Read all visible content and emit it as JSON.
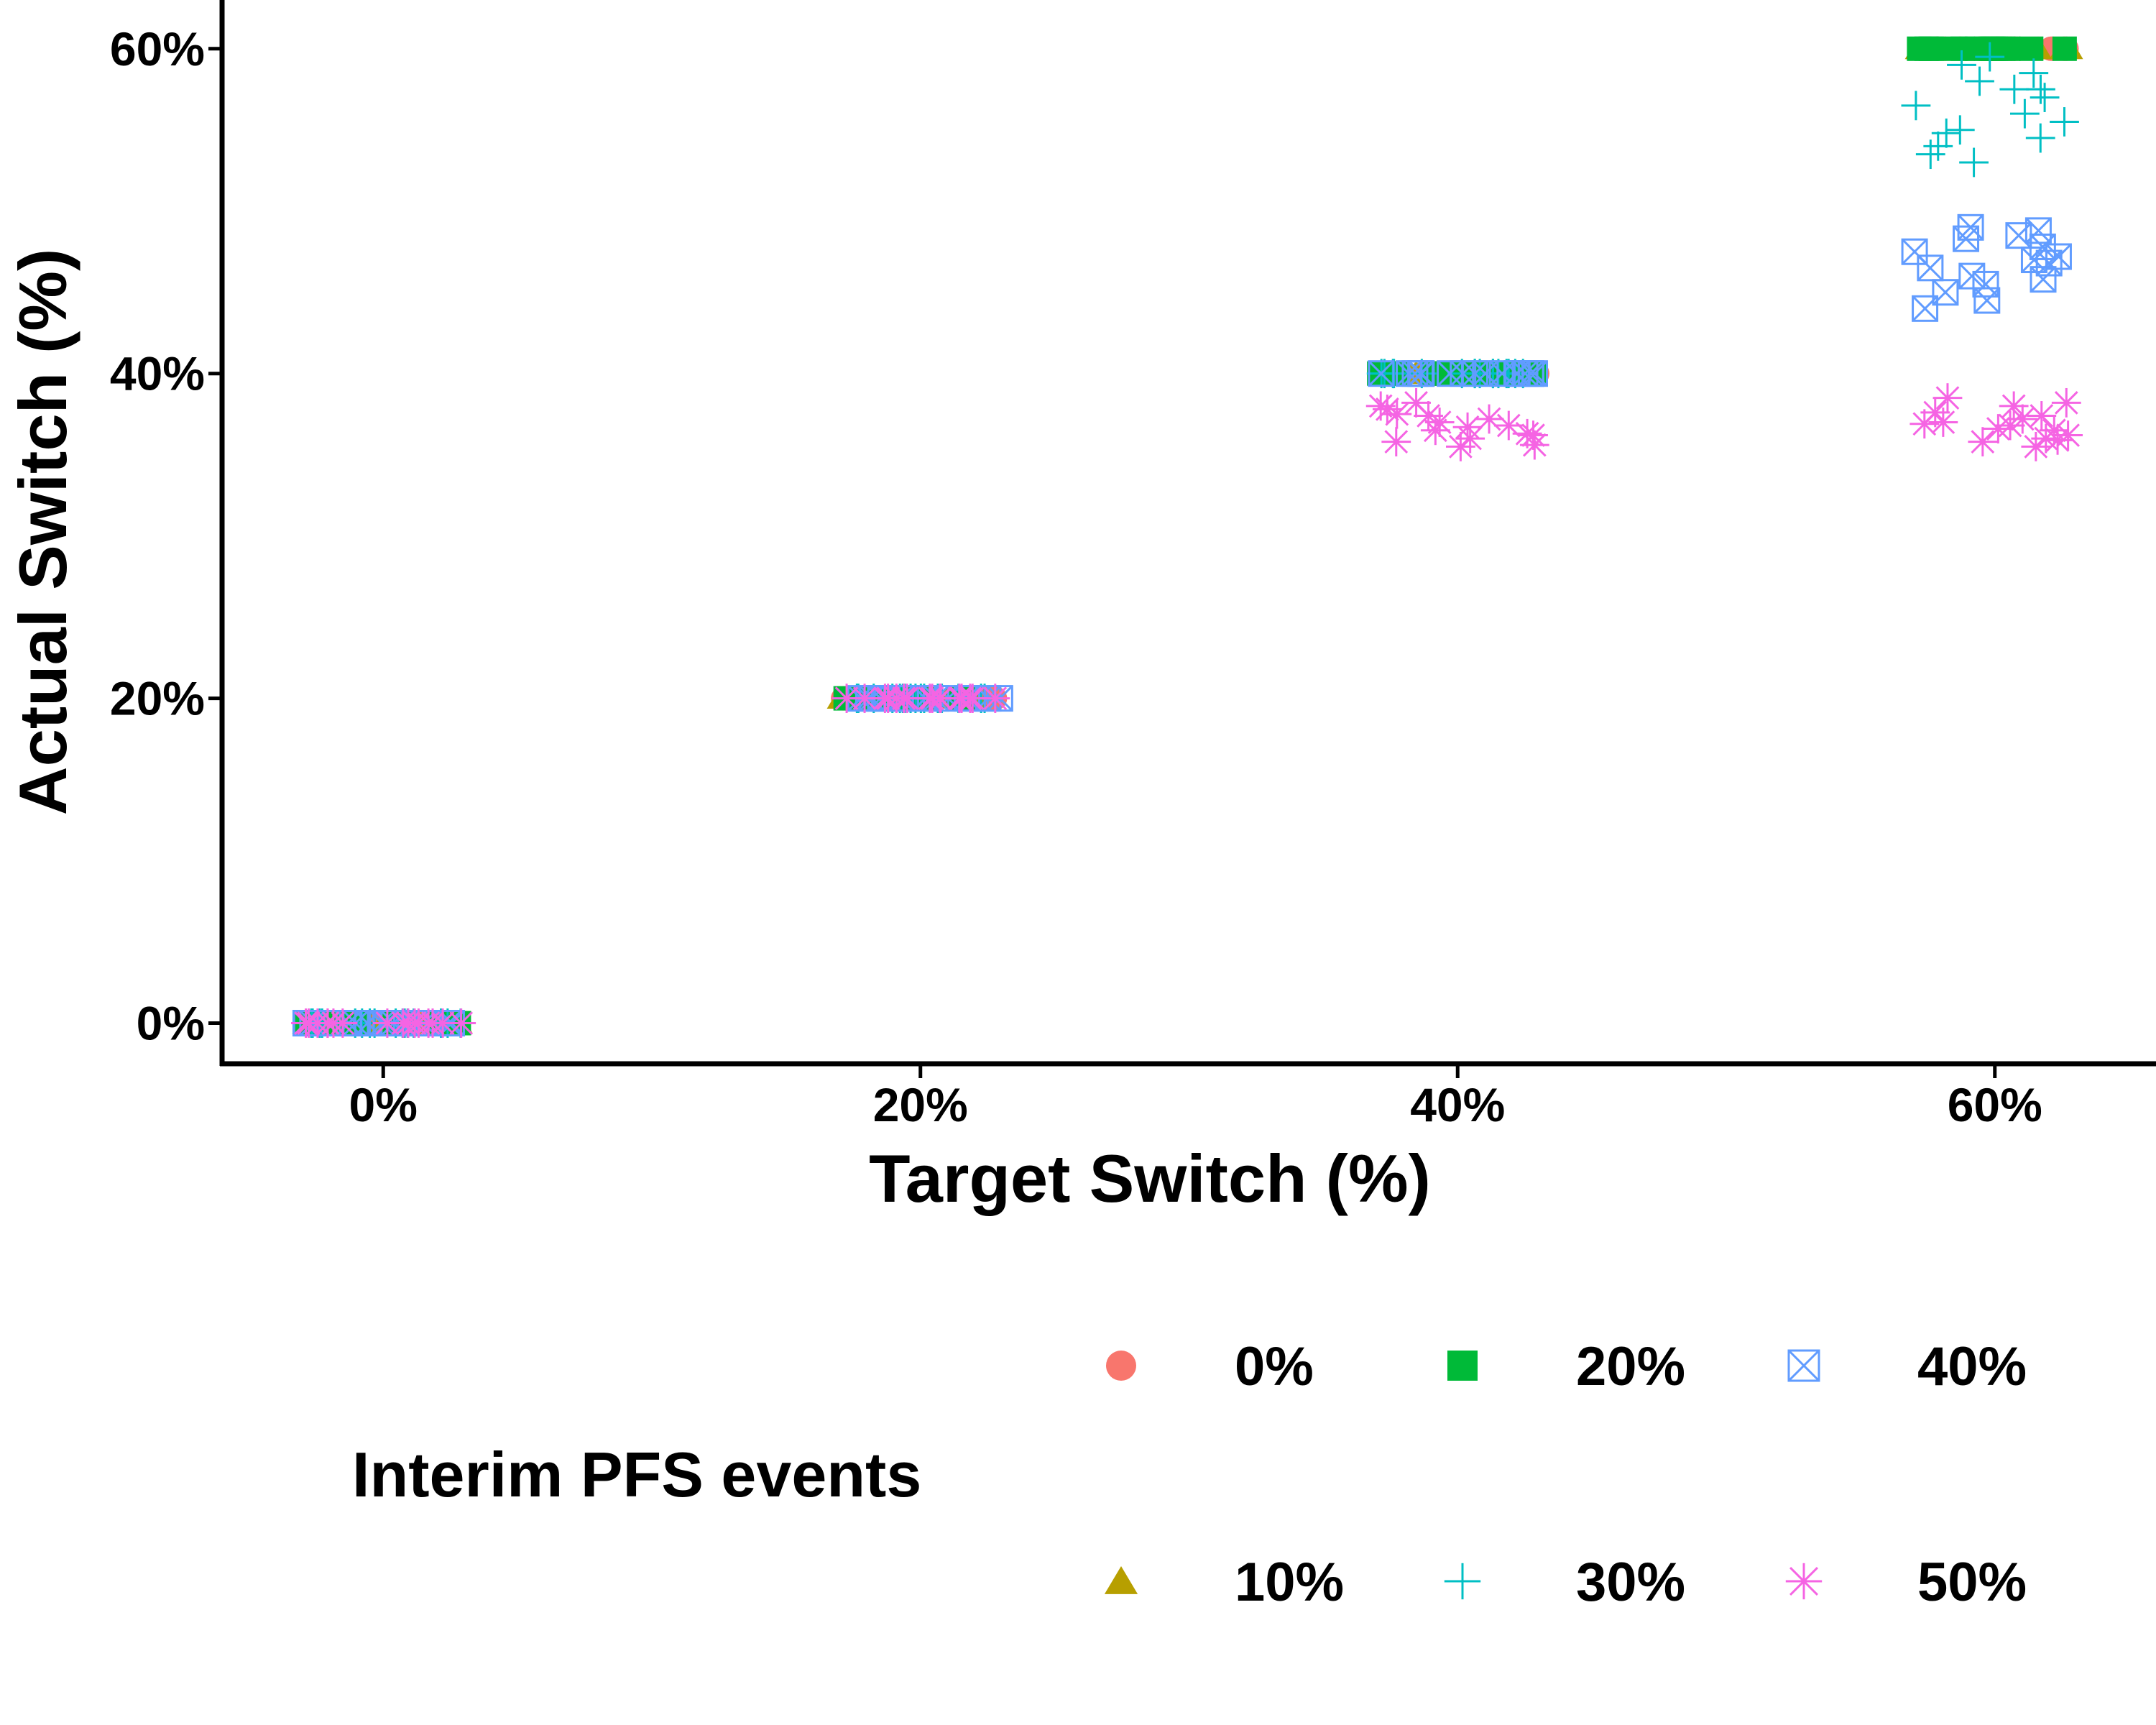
{
  "chart_data": {
    "type": "scatter",
    "xlabel": "Target Switch (%)",
    "ylabel": "Actual Switch (%)",
    "x_categories": [
      "0%",
      "20%",
      "40%",
      "60%"
    ],
    "x_values": [
      0,
      20,
      40,
      60
    ],
    "yticks": [
      0,
      20,
      40,
      60
    ],
    "ytick_labels": [
      "0%",
      "20%",
      "40%",
      "60%"
    ],
    "ylim": [
      -2.5,
      63
    ],
    "xlim": [
      -6,
      66
    ],
    "grid": false,
    "legend": {
      "title": "Interim PFS events",
      "placement": "bottom",
      "entries": [
        "0%",
        "10%",
        "20%",
        "30%",
        "40%",
        "50%"
      ]
    },
    "series": [
      {
        "name": "0%",
        "marker": "circle",
        "color": "#F8766D",
        "y_by_target": [
          [
            0,
            0,
            0,
            0,
            0,
            0,
            0,
            0,
            0,
            0,
            0,
            0,
            0,
            0,
            0,
            0
          ],
          [
            20,
            20,
            20,
            20,
            20,
            20,
            20,
            20,
            20,
            20,
            20,
            20,
            20,
            20,
            20,
            20
          ],
          [
            40,
            40,
            40,
            40,
            40,
            40,
            40,
            40,
            40,
            40,
            40,
            40,
            40,
            40,
            40,
            40
          ],
          [
            60,
            60,
            60,
            60,
            60,
            60,
            60,
            60,
            60,
            60,
            60,
            60,
            60,
            60,
            60,
            60
          ]
        ]
      },
      {
        "name": "10%",
        "marker": "triangle",
        "color": "#B79F00",
        "y_by_target": [
          [
            0,
            0,
            0,
            0,
            0,
            0,
            0,
            0,
            0,
            0,
            0,
            0,
            0,
            0,
            0,
            0
          ],
          [
            20,
            20,
            20,
            20,
            20,
            20,
            20,
            20,
            20,
            20,
            20,
            20,
            20,
            20,
            20,
            20
          ],
          [
            40,
            40,
            40,
            40,
            40,
            40,
            40,
            40,
            40,
            40,
            40,
            40,
            40,
            40,
            40,
            40
          ],
          [
            60,
            60,
            60,
            60,
            60,
            60,
            60,
            60,
            60,
            60,
            60,
            60,
            60,
            60,
            60,
            60
          ]
        ]
      },
      {
        "name": "20%",
        "marker": "square",
        "color": "#00BA38",
        "y_by_target": [
          [
            0,
            0,
            0,
            0,
            0,
            0,
            0,
            0,
            0,
            0,
            0,
            0,
            0,
            0,
            0,
            0
          ],
          [
            20,
            20,
            20,
            20,
            20,
            20,
            20,
            20,
            20,
            20,
            20,
            20,
            20,
            20,
            20,
            20
          ],
          [
            40,
            40,
            40,
            40,
            40,
            40,
            40,
            40,
            40,
            40,
            40,
            40,
            40,
            40,
            40,
            40
          ],
          [
            60,
            60,
            60,
            60,
            60,
            60,
            60,
            60,
            60,
            60,
            60,
            60,
            60,
            60,
            60,
            60
          ]
        ]
      },
      {
        "name": "30%",
        "marker": "plus",
        "color": "#00BFC4",
        "y_by_target": [
          [
            0,
            0,
            0,
            0,
            0,
            0,
            0,
            0,
            0,
            0,
            0,
            0,
            0,
            0,
            0,
            0
          ],
          [
            20,
            20,
            20,
            20,
            20,
            20,
            20,
            20,
            20,
            20,
            20,
            20,
            20,
            20,
            20,
            20
          ],
          [
            40,
            40,
            40,
            40,
            40,
            40,
            40,
            40,
            40,
            40,
            40,
            40,
            40,
            40,
            40,
            40
          ],
          [
            59.5,
            58.5,
            57.5,
            57,
            56.5,
            55.5,
            55,
            54.5,
            54,
            53.5,
            53,
            56,
            57.5,
            58,
            59,
            54.8
          ]
        ]
      },
      {
        "name": "40%",
        "marker": "square-cross",
        "color": "#619CFF",
        "y_by_target": [
          [
            0,
            0,
            0,
            0,
            0,
            0,
            0,
            0,
            0,
            0,
            0,
            0,
            0,
            0,
            0,
            0
          ],
          [
            20,
            20,
            20,
            20,
            20,
            20,
            20,
            20,
            20,
            20,
            20,
            20,
            20,
            20,
            20,
            20
          ],
          [
            40,
            40,
            40,
            40,
            40,
            40,
            40,
            40,
            40,
            40,
            40,
            40,
            40,
            40,
            40,
            40
          ],
          [
            49,
            48.8,
            48.3,
            47.8,
            47.5,
            47,
            46.8,
            46.5,
            46,
            45.5,
            45,
            44.5,
            44,
            47.2,
            45.8,
            48.5
          ]
        ]
      },
      {
        "name": "50%",
        "marker": "asterisk",
        "color": "#F564E3",
        "y_by_target": [
          [
            0,
            0,
            0,
            0,
            0,
            0,
            0,
            0,
            0,
            0,
            0,
            0,
            0,
            0,
            0,
            0
          ],
          [
            20,
            20,
            20,
            20,
            20,
            20,
            20,
            20,
            20,
            20,
            20,
            20,
            20,
            20,
            20,
            20
          ],
          [
            38.2,
            37.8,
            37.5,
            37,
            36.8,
            36.5,
            36.2,
            36,
            35.8,
            35.5,
            37.2,
            36.7,
            38,
            35.6,
            37.4,
            36.3
          ],
          [
            38.5,
            38,
            37.6,
            37.2,
            37,
            36.8,
            36.5,
            36.2,
            36,
            35.8,
            35.5,
            37.4,
            36.6,
            38.2,
            36.9,
            35.9
          ]
        ]
      }
    ]
  }
}
